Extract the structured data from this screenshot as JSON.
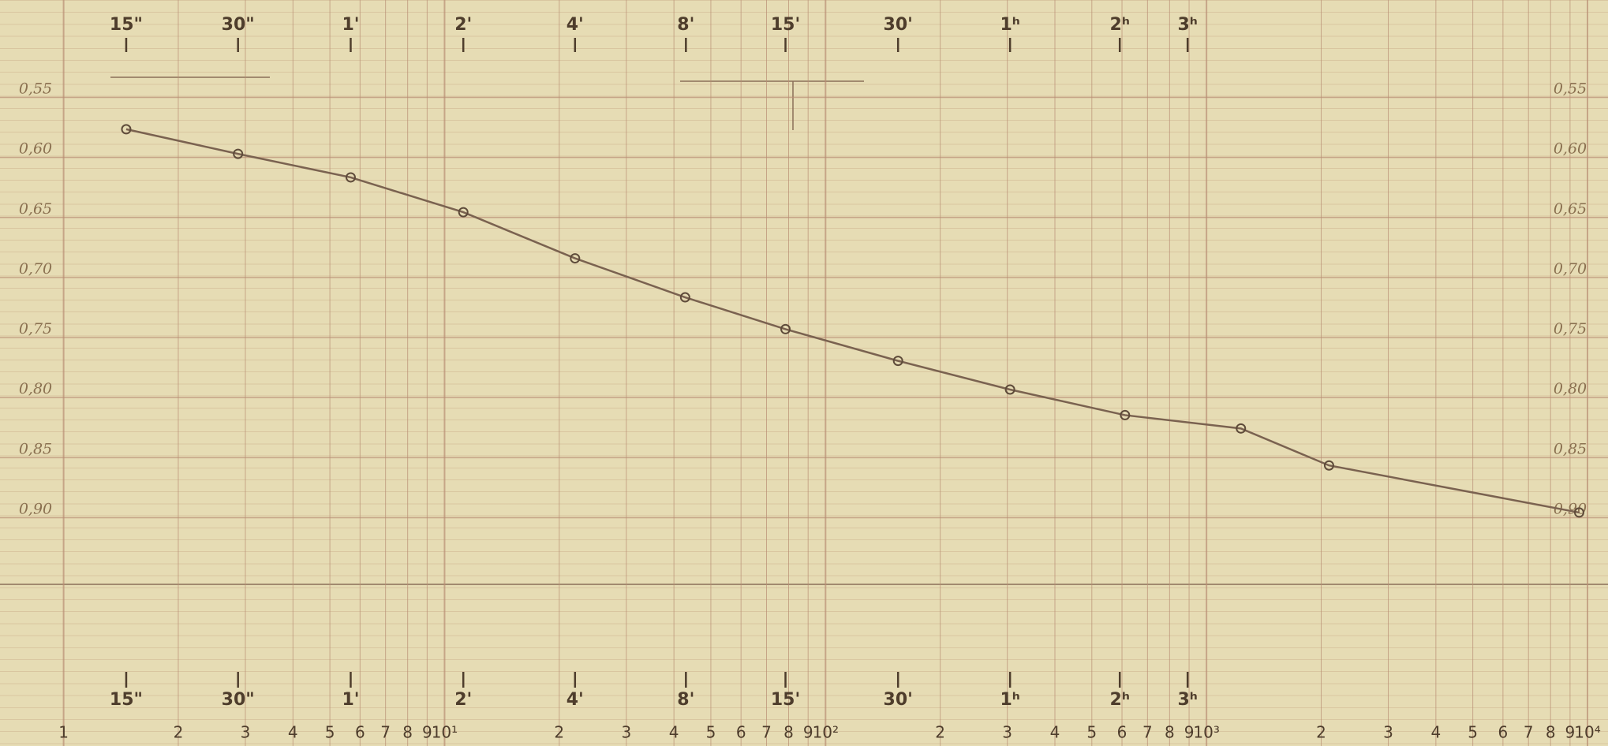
{
  "chart_data": {
    "type": "line",
    "xscale": "log",
    "grid": true,
    "color": "#7a6250",
    "marker_color": "#5e4b3a",
    "xlim": [
      1,
      10000
    ],
    "ylim": [
      0.5,
      0.95
    ],
    "x": [
      1.46,
      2.87,
      5.67,
      11.2,
      22.0,
      42.8,
      78.5,
      155,
      305,
      611,
      1231,
      2097,
      9510
    ],
    "values": [
      0.5765,
      0.597,
      0.6166,
      0.6456,
      0.684,
      0.7165,
      0.743,
      0.7694,
      0.7933,
      0.8146,
      0.8257,
      0.8565,
      0.8957
    ],
    "xticks": [
      1,
      2,
      3,
      4,
      5,
      6,
      7,
      8,
      9,
      {
        "value": 10,
        "label": "10¹"
      },
      {
        "value": 20,
        "label": "2"
      },
      {
        "value": 30,
        "label": "3"
      },
      {
        "value": 40,
        "label": "4"
      },
      {
        "value": 50,
        "label": "5"
      },
      {
        "value": 60,
        "label": "6"
      },
      {
        "value": 70,
        "label": "7"
      },
      {
        "value": 80,
        "label": "8"
      },
      {
        "value": 90,
        "label": "9"
      },
      {
        "value": 100,
        "label": "10²"
      },
      {
        "value": 200,
        "label": "2"
      },
      {
        "value": 300,
        "label": "3"
      },
      {
        "value": 400,
        "label": "4"
      },
      {
        "value": 500,
        "label": "5"
      },
      {
        "value": 600,
        "label": "6"
      },
      {
        "value": 700,
        "label": "7"
      },
      {
        "value": 800,
        "label": "8"
      },
      {
        "value": 900,
        "label": "9"
      },
      {
        "value": 1000,
        "label": "10³"
      },
      {
        "value": 2000,
        "label": "2"
      },
      {
        "value": 3000,
        "label": "3"
      },
      {
        "value": 4000,
        "label": "4"
      },
      {
        "value": 5000,
        "label": "5"
      },
      {
        "value": 6000,
        "label": "6"
      },
      {
        "value": 7000,
        "label": "7"
      },
      {
        "value": 8000,
        "label": "8"
      },
      {
        "value": 9000,
        "label": "9"
      },
      {
        "value": 10000,
        "label": "10⁴"
      }
    ],
    "yticks": [
      {
        "value": 0.55,
        "label": "0,55"
      },
      {
        "value": 0.6,
        "label": "0,60"
      },
      {
        "value": 0.65,
        "label": "0,65"
      },
      {
        "value": 0.7,
        "label": "0,70"
      },
      {
        "value": 0.75,
        "label": "0,75"
      },
      {
        "value": 0.8,
        "label": "0,80"
      },
      {
        "value": 0.85,
        "label": "0,85"
      },
      {
        "value": 0.9,
        "label": "0,90"
      }
    ],
    "time_marks": {
      "x": [
        1.46,
        2.87,
        5.67,
        11.2,
        22.0,
        43.0,
        78.5,
        155,
        305,
        592,
        892
      ],
      "labels": [
        "15\"",
        "30\"",
        "1'",
        "2'",
        "4'",
        "8'",
        "15'",
        "30'",
        "1ʰ",
        "2ʰ",
        "3ʰ"
      ]
    }
  }
}
